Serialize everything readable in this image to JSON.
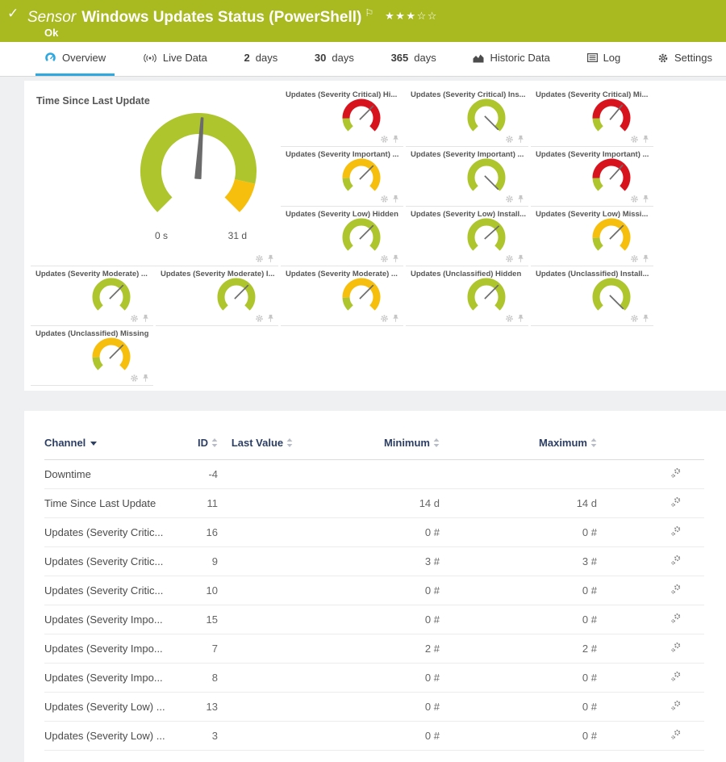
{
  "header": {
    "type_label": "Sensor",
    "title": "Windows Updates Status (PowerShell)",
    "status": "Ok",
    "stars_filled": 3,
    "stars_empty": 2,
    "bg_color": "#a8ba20"
  },
  "tabs": [
    {
      "id": "overview",
      "icon": "gauge-icon",
      "label": "Overview",
      "active": true
    },
    {
      "id": "live-data",
      "icon": "live-data-icon",
      "label": "Live Data",
      "active": false
    },
    {
      "id": "2-days",
      "prefix": "2",
      "label": "days",
      "active": false
    },
    {
      "id": "30-days",
      "prefix": "30",
      "label": "days",
      "active": false
    },
    {
      "id": "365-days",
      "prefix": "365",
      "label": "days",
      "active": false
    },
    {
      "id": "historic-data",
      "icon": "historic-data-icon",
      "label": "Historic Data",
      "active": false
    },
    {
      "id": "log",
      "icon": "log-icon",
      "label": "Log",
      "active": false
    },
    {
      "id": "settings",
      "icon": "settings-icon",
      "label": "Settings",
      "active": false
    }
  ],
  "colors": {
    "gauge_green": "#aec52d",
    "gauge_yellow": "#f6be0d",
    "gauge_red": "#d7141e",
    "needle": "#6b6b6b",
    "accent_blue": "#2da8e0",
    "table_header": "#2c3e63"
  },
  "gauge_schemes": {
    "ok": [
      {
        "color": "#aec52d",
        "from": 0,
        "to": 1
      }
    ],
    "warn": [
      {
        "color": "#aec52d",
        "from": 0,
        "to": 0.16
      },
      {
        "color": "#f6be0d",
        "from": 0.16,
        "to": 1
      }
    ],
    "error": [
      {
        "color": "#aec52d",
        "from": 0,
        "to": 0.16
      },
      {
        "color": "#d7141e",
        "from": 0.16,
        "to": 1
      }
    ]
  },
  "big_gauge": {
    "title": "Time Since Last Update",
    "min_label": "0 s",
    "max_label": "31 d",
    "needle_angle": 4,
    "segments": [
      {
        "color": "#aec52d",
        "from": 0,
        "to": 0.88
      },
      {
        "color": "#f6be0d",
        "from": 0.88,
        "to": 1
      }
    ]
  },
  "small_gauges": [
    {
      "title": "Updates (Severity Critical) Hi...",
      "scheme": "error",
      "needle_angle": 45
    },
    {
      "title": "Updates (Severity Critical) Ins...",
      "scheme": "ok",
      "needle_angle": 135
    },
    {
      "title": "Updates (Severity Critical) Mi...",
      "scheme": "error",
      "needle_angle": 40
    },
    {
      "title": "Updates (Severity Important) ...",
      "scheme": "warn",
      "needle_angle": 45
    },
    {
      "title": "Updates (Severity Important) ...",
      "scheme": "ok",
      "needle_angle": 135
    },
    {
      "title": "Updates (Severity Important) ...",
      "scheme": "error",
      "needle_angle": 42
    },
    {
      "title": "Updates (Severity Low) Hidden",
      "scheme": "ok",
      "needle_angle": 45
    },
    {
      "title": "Updates (Severity Low) Install...",
      "scheme": "ok",
      "needle_angle": 48
    },
    {
      "title": "Updates (Severity Low) Missi...",
      "scheme": "warn",
      "needle_angle": 45
    },
    {
      "title": "Updates (Severity Moderate) ...",
      "scheme": "ok",
      "needle_angle": 45
    },
    {
      "title": "Updates (Severity Moderate) I...",
      "scheme": "ok",
      "needle_angle": 45
    },
    {
      "title": "Updates (Severity Moderate) ...",
      "scheme": "warn",
      "needle_angle": 45
    },
    {
      "title": "Updates (Unclassified) Hidden",
      "scheme": "ok",
      "needle_angle": 45
    },
    {
      "title": "Updates (Unclassified) Install...",
      "scheme": "ok",
      "needle_angle": 135
    },
    {
      "title": "Updates (Unclassified) Missing",
      "scheme": "warn",
      "needle_angle": 45
    }
  ],
  "channel_table": {
    "columns": [
      {
        "label": "Channel",
        "sort": "active-desc"
      },
      {
        "label": "ID",
        "sort": "sortable"
      },
      {
        "label": "Last Value",
        "sort": "sortable"
      },
      {
        "label": "Minimum",
        "sort": "sortable"
      },
      {
        "label": "Maximum",
        "sort": "sortable"
      }
    ],
    "rows": [
      {
        "channel": "Downtime",
        "id": "-4",
        "last_value": "",
        "minimum": "",
        "maximum": ""
      },
      {
        "channel": "Time Since Last Update",
        "id": "11",
        "last_value": "",
        "minimum": "14 d",
        "maximum": "14 d"
      },
      {
        "channel": "Updates (Severity Critic...",
        "id": "16",
        "last_value": "",
        "minimum": "0 #",
        "maximum": "0 #"
      },
      {
        "channel": "Updates (Severity Critic...",
        "id": "9",
        "last_value": "",
        "minimum": "3 #",
        "maximum": "3 #"
      },
      {
        "channel": "Updates (Severity Critic...",
        "id": "10",
        "last_value": "",
        "minimum": "0 #",
        "maximum": "0 #"
      },
      {
        "channel": "Updates (Severity Impo...",
        "id": "15",
        "last_value": "",
        "minimum": "0 #",
        "maximum": "0 #"
      },
      {
        "channel": "Updates (Severity Impo...",
        "id": "7",
        "last_value": "",
        "minimum": "2 #",
        "maximum": "2 #"
      },
      {
        "channel": "Updates (Severity Impo...",
        "id": "8",
        "last_value": "",
        "minimum": "0 #",
        "maximum": "0 #"
      },
      {
        "channel": "Updates (Severity Low) ...",
        "id": "13",
        "last_value": "",
        "minimum": "0 #",
        "maximum": "0 #"
      },
      {
        "channel": "Updates (Severity Low) ...",
        "id": "3",
        "last_value": "",
        "minimum": "0 #",
        "maximum": "0 #"
      }
    ]
  }
}
